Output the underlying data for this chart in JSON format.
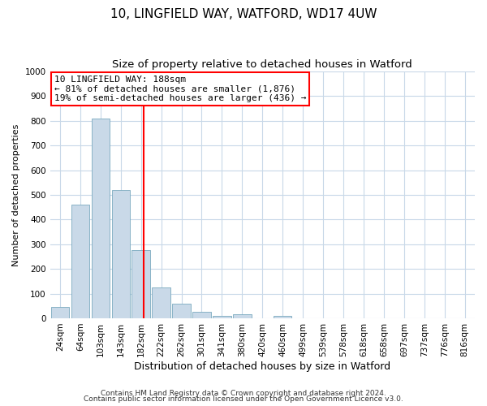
{
  "title1": "10, LINGFIELD WAY, WATFORD, WD17 4UW",
  "title2": "Size of property relative to detached houses in Watford",
  "xlabel": "Distribution of detached houses by size in Watford",
  "ylabel": "Number of detached properties",
  "categories": [
    "24sqm",
    "64sqm",
    "103sqm",
    "143sqm",
    "182sqm",
    "222sqm",
    "262sqm",
    "301sqm",
    "341sqm",
    "380sqm",
    "420sqm",
    "460sqm",
    "499sqm",
    "539sqm",
    "578sqm",
    "618sqm",
    "658sqm",
    "697sqm",
    "737sqm",
    "776sqm",
    "816sqm"
  ],
  "values": [
    45,
    460,
    810,
    520,
    275,
    125,
    60,
    25,
    10,
    15,
    0,
    10,
    0,
    0,
    0,
    0,
    0,
    0,
    0,
    0,
    0
  ],
  "bar_color": "#c9d9e8",
  "bar_edge_color": "#7aaabf",
  "grid_color": "#c8d8e8",
  "annotation_text": "10 LINGFIELD WAY: 188sqm\n← 81% of detached houses are smaller (1,876)\n19% of semi-detached houses are larger (436) →",
  "annotation_box_color": "white",
  "annotation_box_edge_color": "red",
  "red_line_color": "red",
  "footer1": "Contains HM Land Registry data © Crown copyright and database right 2024.",
  "footer2": "Contains public sector information licensed under the Open Government Licence v3.0.",
  "ylim": [
    0,
    1000
  ],
  "yticks": [
    0,
    100,
    200,
    300,
    400,
    500,
    600,
    700,
    800,
    900,
    1000
  ],
  "title1_fontsize": 11,
  "title2_fontsize": 9.5,
  "xlabel_fontsize": 9,
  "ylabel_fontsize": 8,
  "tick_fontsize": 7.5,
  "annotation_fontsize": 8,
  "footer_fontsize": 6.5
}
